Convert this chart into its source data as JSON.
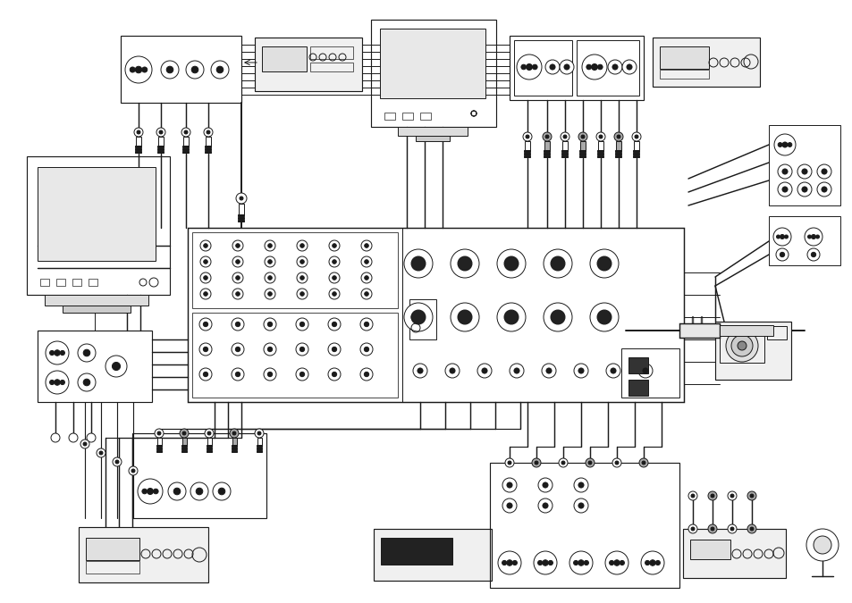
{
  "background_color": "#ffffff",
  "figure_width": 9.54,
  "figure_height": 6.75,
  "dpi": 100,
  "line_color": "#1a1a1a",
  "gray_color": "#aaaaaa",
  "lw": 0.7,
  "title": ""
}
